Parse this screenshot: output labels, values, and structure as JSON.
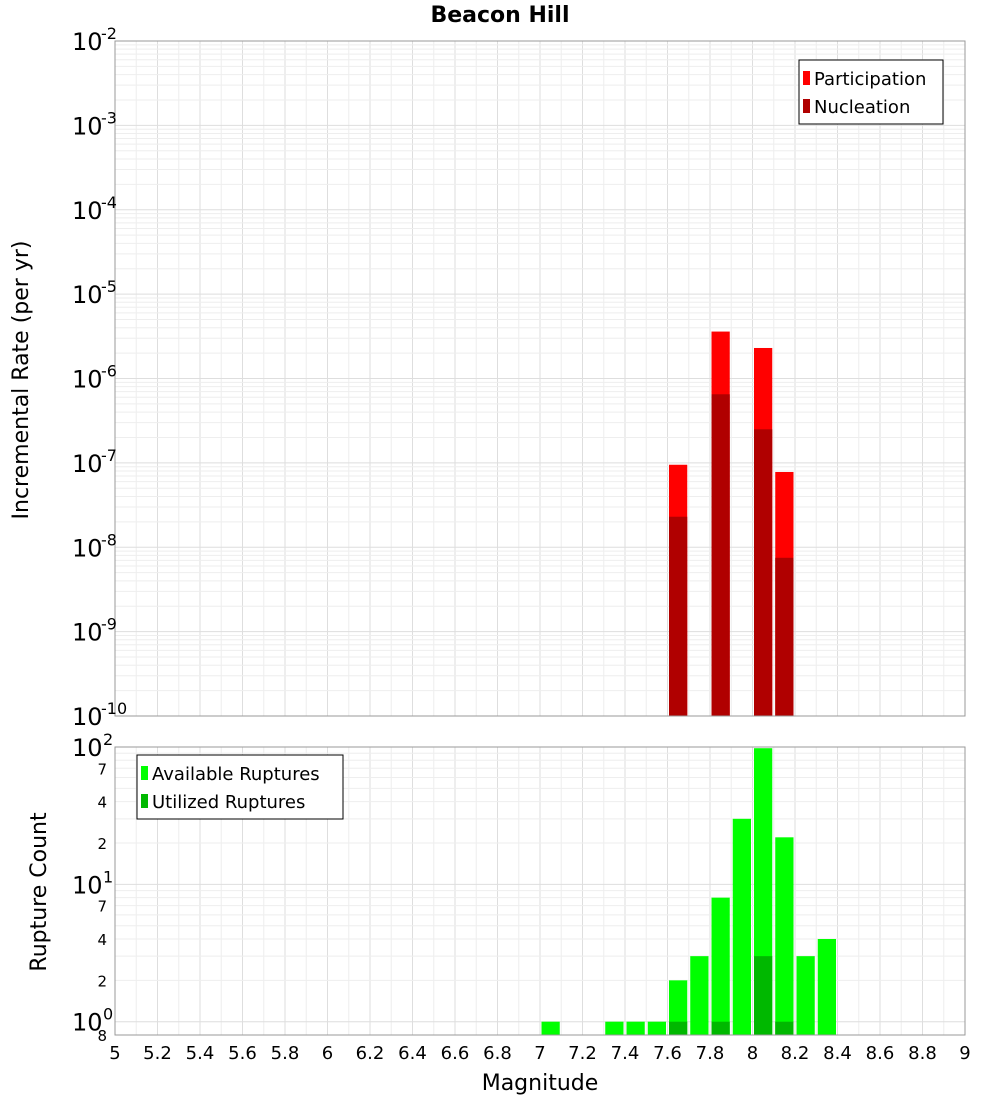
{
  "chart_data": [
    {
      "type": "bar",
      "title": "Beacon Hill",
      "ylabel": "Incremental Rate (per yr)",
      "xlabel": "",
      "x_scale": "linear",
      "y_scale": "log",
      "xlim": [
        5,
        9
      ],
      "ylim": [
        1e-10,
        0.01
      ],
      "y_ticks": [
        {
          "base": "10",
          "exp": "-10"
        },
        {
          "base": "10",
          "exp": "-9"
        },
        {
          "base": "10",
          "exp": "-8"
        },
        {
          "base": "10",
          "exp": "-7"
        },
        {
          "base": "10",
          "exp": "-6"
        },
        {
          "base": "10",
          "exp": "-5"
        },
        {
          "base": "10",
          "exp": "-4"
        },
        {
          "base": "10",
          "exp": "-3"
        },
        {
          "base": "10",
          "exp": "-2"
        }
      ],
      "bin_width": 0.1,
      "grid": true,
      "legend_position": "top-right",
      "series": [
        {
          "name": "Participation",
          "color": "#ff0000",
          "x": [
            7.65,
            7.85,
            8.05,
            8.15
          ],
          "values": [
            9.5e-08,
            3.6e-06,
            2.3e-06,
            7.8e-08
          ]
        },
        {
          "name": "Nucleation",
          "color": "#b00000",
          "x": [
            7.65,
            7.85,
            8.05,
            8.15
          ],
          "values": [
            2.3e-08,
            6.5e-07,
            2.5e-07,
            7.5e-09
          ]
        }
      ]
    },
    {
      "type": "bar",
      "title": "",
      "ylabel": "Rupture Count",
      "xlabel": "Magnitude",
      "x_scale": "linear",
      "y_scale": "log",
      "xlim": [
        5,
        9
      ],
      "ylim": [
        0.8,
        100
      ],
      "x_ticks": [
        "5",
        "5.2",
        "5.4",
        "5.6",
        "5.8",
        "6",
        "6.2",
        "6.4",
        "6.6",
        "6.8",
        "7",
        "7.2",
        "7.4",
        "7.6",
        "7.8",
        "8",
        "8.2",
        "8.4",
        "8.6",
        "8.8",
        "9"
      ],
      "y_major_ticks": [
        {
          "base": "10",
          "exp": "0"
        },
        {
          "base": "10",
          "exp": "1"
        },
        {
          "base": "10",
          "exp": "2"
        }
      ],
      "y_minor_ticks": [
        {
          "value": 0.8,
          "label": "8"
        },
        {
          "value": 2,
          "label": "2"
        },
        {
          "value": 4,
          "label": "4"
        },
        {
          "value": 7,
          "label": "7"
        },
        {
          "value": 20,
          "label": "2"
        },
        {
          "value": 40,
          "label": "4"
        },
        {
          "value": 70,
          "label": "7"
        }
      ],
      "bin_width": 0.1,
      "grid": true,
      "legend_position": "top-left",
      "series": [
        {
          "name": "Available Ruptures",
          "color": "#00ff00",
          "x": [
            7.05,
            7.35,
            7.45,
            7.55,
            7.65,
            7.75,
            7.85,
            7.95,
            8.05,
            8.15,
            8.25,
            8.35
          ],
          "values": [
            1,
            1,
            1,
            1,
            2,
            3,
            8,
            30,
            98,
            22,
            3,
            4
          ]
        },
        {
          "name": "Utilized Ruptures",
          "color": "#00b800",
          "x": [
            7.65,
            7.85,
            8.05,
            8.15
          ],
          "values": [
            1,
            1,
            3,
            1
          ]
        }
      ]
    }
  ]
}
